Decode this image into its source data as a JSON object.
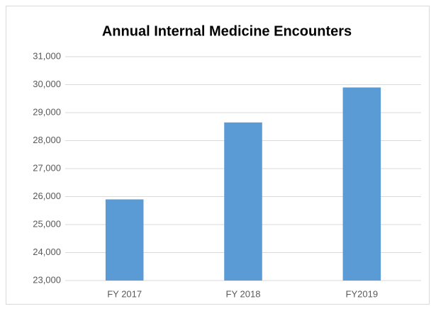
{
  "chart_data": {
    "type": "bar",
    "title": "Annual Internal Medicine Encounters",
    "categories": [
      "FY 2017",
      "FY 2018",
      "FY2019"
    ],
    "values": [
      25900,
      28650,
      29900
    ],
    "color": "#5b9bd5",
    "ylim": [
      23000,
      31000
    ],
    "yticks": [
      {
        "value": 23000,
        "label": "23,000"
      },
      {
        "value": 24000,
        "label": "24,000"
      },
      {
        "value": 25000,
        "label": "25,000"
      },
      {
        "value": 26000,
        "label": "26,000"
      },
      {
        "value": 27000,
        "label": "27,000"
      },
      {
        "value": 28000,
        "label": "28,000"
      },
      {
        "value": 29000,
        "label": "29,000"
      },
      {
        "value": 30000,
        "label": "30,000"
      },
      {
        "value": 31000,
        "label": "31,000"
      }
    ],
    "grid": true
  }
}
